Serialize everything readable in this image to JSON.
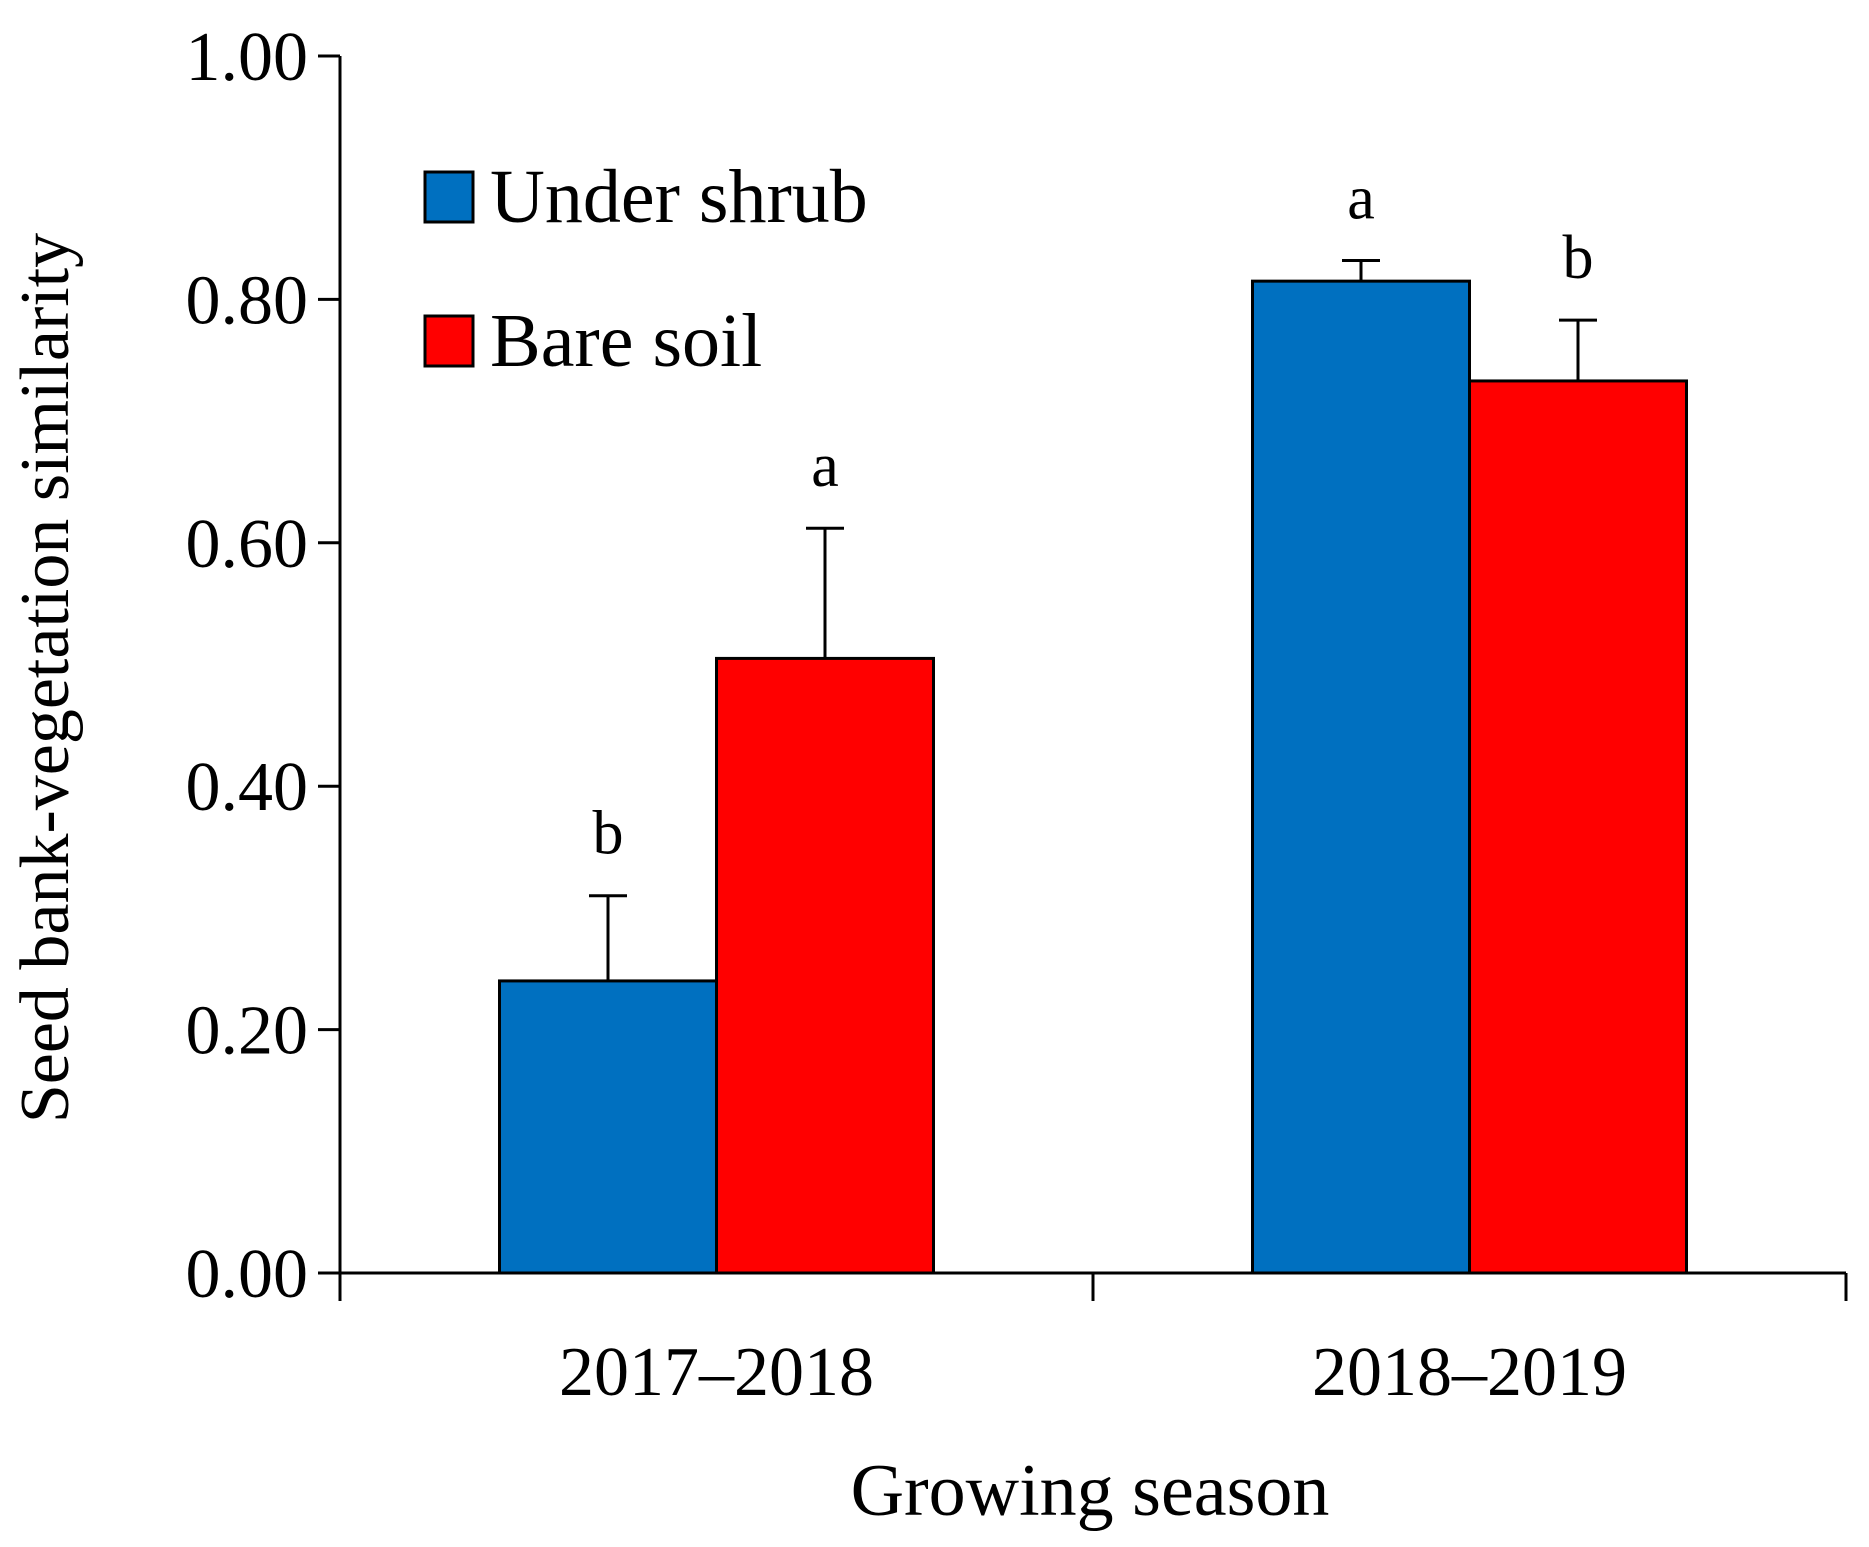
{
  "chart_data": {
    "type": "bar",
    "ylabel": "Seed bank-vegetation  similarity",
    "xlabel": "Growing season",
    "ylim": [
      0,
      1
    ],
    "yticks": [
      0.0,
      0.2,
      0.4,
      0.6,
      0.8,
      1.0
    ],
    "ytick_labels": [
      "0.00",
      "0.20",
      "0.40",
      "0.60",
      "0.80",
      "1.00"
    ],
    "categories": [
      "2017–2018",
      "2018–2019"
    ],
    "series": [
      {
        "name": "Under shrub",
        "color": "#0070c0",
        "values": [
          0.24,
          0.815
        ],
        "errors": [
          0.07,
          0.017
        ],
        "letters": [
          "b",
          "a"
        ]
      },
      {
        "name": "Bare soil",
        "color": "#ff0000",
        "values": [
          0.505,
          0.733
        ],
        "errors": [
          0.107,
          0.05
        ],
        "letters": [
          "a",
          "b"
        ]
      }
    ],
    "legend_position": "top-left",
    "grid": false
  }
}
